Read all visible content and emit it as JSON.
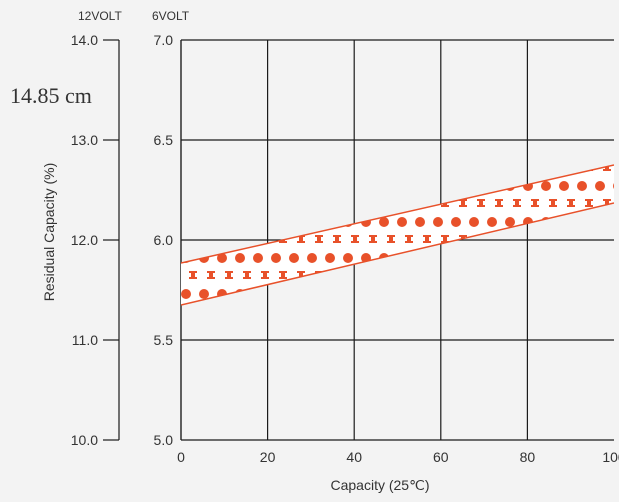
{
  "chart_data": {
    "type": "area",
    "title": "",
    "xlabel": "Capacity (25℃)",
    "ylabel": "Residual Capacity (%)",
    "annotation": "14.85 cm",
    "left_axis_header": "12VOLT",
    "right_axis_header": "6VOLT",
    "x_ticks": [
      "0",
      "20",
      "40",
      "60",
      "80",
      "100"
    ],
    "y_ticks_12v": [
      "14.0",
      "13.0",
      "12.0",
      "11.0",
      "10.0"
    ],
    "y_ticks_6v": [
      "7.0",
      "6.5",
      "6.0",
      "5.5",
      "5.0"
    ],
    "xlim": [
      0,
      100
    ],
    "ylim_12v": [
      10.0,
      14.0
    ],
    "ylim_6v": [
      5.0,
      7.0
    ],
    "grid": true,
    "series": [
      {
        "x": [
          0,
          100
        ],
        "lower_12v": [
          11.35,
          12.37
        ],
        "upper_12v": [
          11.77,
          12.75
        ],
        "lower_6v": [
          5.675,
          6.185
        ],
        "upper_6v": [
          5.885,
          6.375
        ]
      }
    ],
    "colors": {
      "band": "#e8512a",
      "grid": "#1a1a1a",
      "text": "#333333",
      "background": "#f3f3f3"
    }
  }
}
